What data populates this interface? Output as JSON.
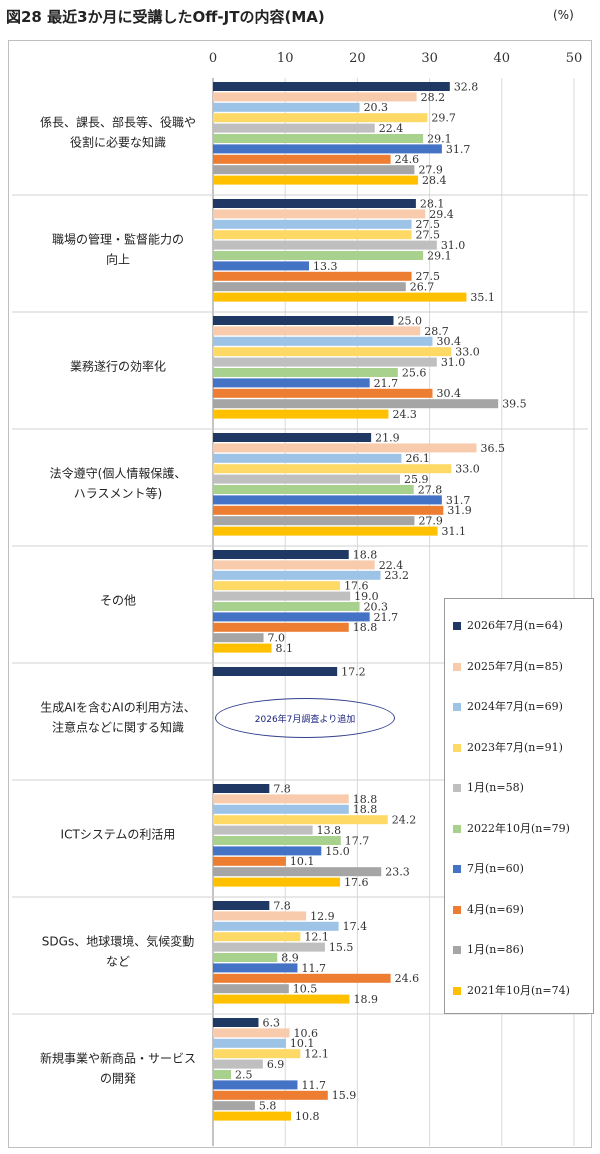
{
  "title": "図28  最近3か月に受講したOff-JTの内容(MA)",
  "unit": "(%)",
  "note": "2026年7月調査より追加",
  "chart_data": {
    "type": "bar",
    "orientation": "horizontal",
    "title": "図28  最近3か月に受講したOff-JTの内容(MA)",
    "xlim": [
      0,
      50
    ],
    "ticks": [
      0,
      10,
      20,
      30,
      40,
      50
    ],
    "grid": true,
    "legend_position": "right",
    "categories": [
      [
        "係長、課長、部長等、役職や",
        "役割に必要な知識"
      ],
      [
        "職場の管理・監督能力の",
        "向上"
      ],
      [
        "業務遂行の効率化"
      ],
      [
        "法令遵守(個人情報保護、",
        "ハラスメント等)"
      ],
      [
        "その他"
      ],
      [
        "生成AIを含むAIの利用方法、",
        "注意点などに関する知識"
      ],
      [
        "ICTシステムの利活用"
      ],
      [
        "SDGs、地球環境、気候変動",
        "など"
      ],
      [
        "新規事業や新商品・サービス",
        "の開発"
      ]
    ],
    "series": [
      {
        "name": "2026年7月(n=64)",
        "color": "#1f3864",
        "values": [
          32.8,
          28.1,
          25.0,
          21.9,
          18.8,
          17.2,
          7.8,
          7.8,
          6.3
        ]
      },
      {
        "name": "2025年7月(n=85)",
        "color": "#f8cbad",
        "values": [
          28.2,
          29.4,
          28.7,
          36.5,
          22.4,
          null,
          18.8,
          12.9,
          10.6
        ]
      },
      {
        "name": "2024年7月(n=69)",
        "color": "#9dc3e6",
        "values": [
          20.3,
          27.5,
          30.4,
          26.1,
          23.2,
          null,
          18.8,
          17.4,
          10.1
        ]
      },
      {
        "name": "2023年7月(n=91)",
        "color": "#ffd966",
        "values": [
          29.7,
          27.5,
          33.0,
          33.0,
          17.6,
          null,
          24.2,
          12.1,
          12.1
        ]
      },
      {
        "name": "1月(n=58)",
        "color": "#bfbfbf",
        "values": [
          22.4,
          31.0,
          31.0,
          25.9,
          19.0,
          null,
          13.8,
          15.5,
          6.9
        ]
      },
      {
        "name": "2022年10月(n=79)",
        "color": "#a9d18e",
        "values": [
          29.1,
          29.1,
          25.6,
          27.8,
          20.3,
          null,
          17.7,
          8.9,
          2.5
        ]
      },
      {
        "name": "7月(n=60)",
        "color": "#4472c4",
        "values": [
          31.7,
          13.3,
          21.7,
          31.7,
          21.7,
          null,
          15.0,
          11.7,
          11.7
        ]
      },
      {
        "name": "4月(n=69)",
        "color": "#ed7d31",
        "values": [
          24.6,
          27.5,
          30.4,
          31.9,
          18.8,
          null,
          10.1,
          24.6,
          15.9
        ]
      },
      {
        "name": "1月(n=86)",
        "color": "#a5a5a5",
        "values": [
          27.9,
          26.7,
          39.5,
          27.9,
          7.0,
          null,
          23.3,
          10.5,
          5.8
        ]
      },
      {
        "name": "2021年10月(n=74)",
        "color": "#ffc000",
        "values": [
          28.4,
          35.1,
          24.3,
          31.1,
          8.1,
          null,
          17.6,
          18.9,
          10.8
        ]
      }
    ]
  }
}
